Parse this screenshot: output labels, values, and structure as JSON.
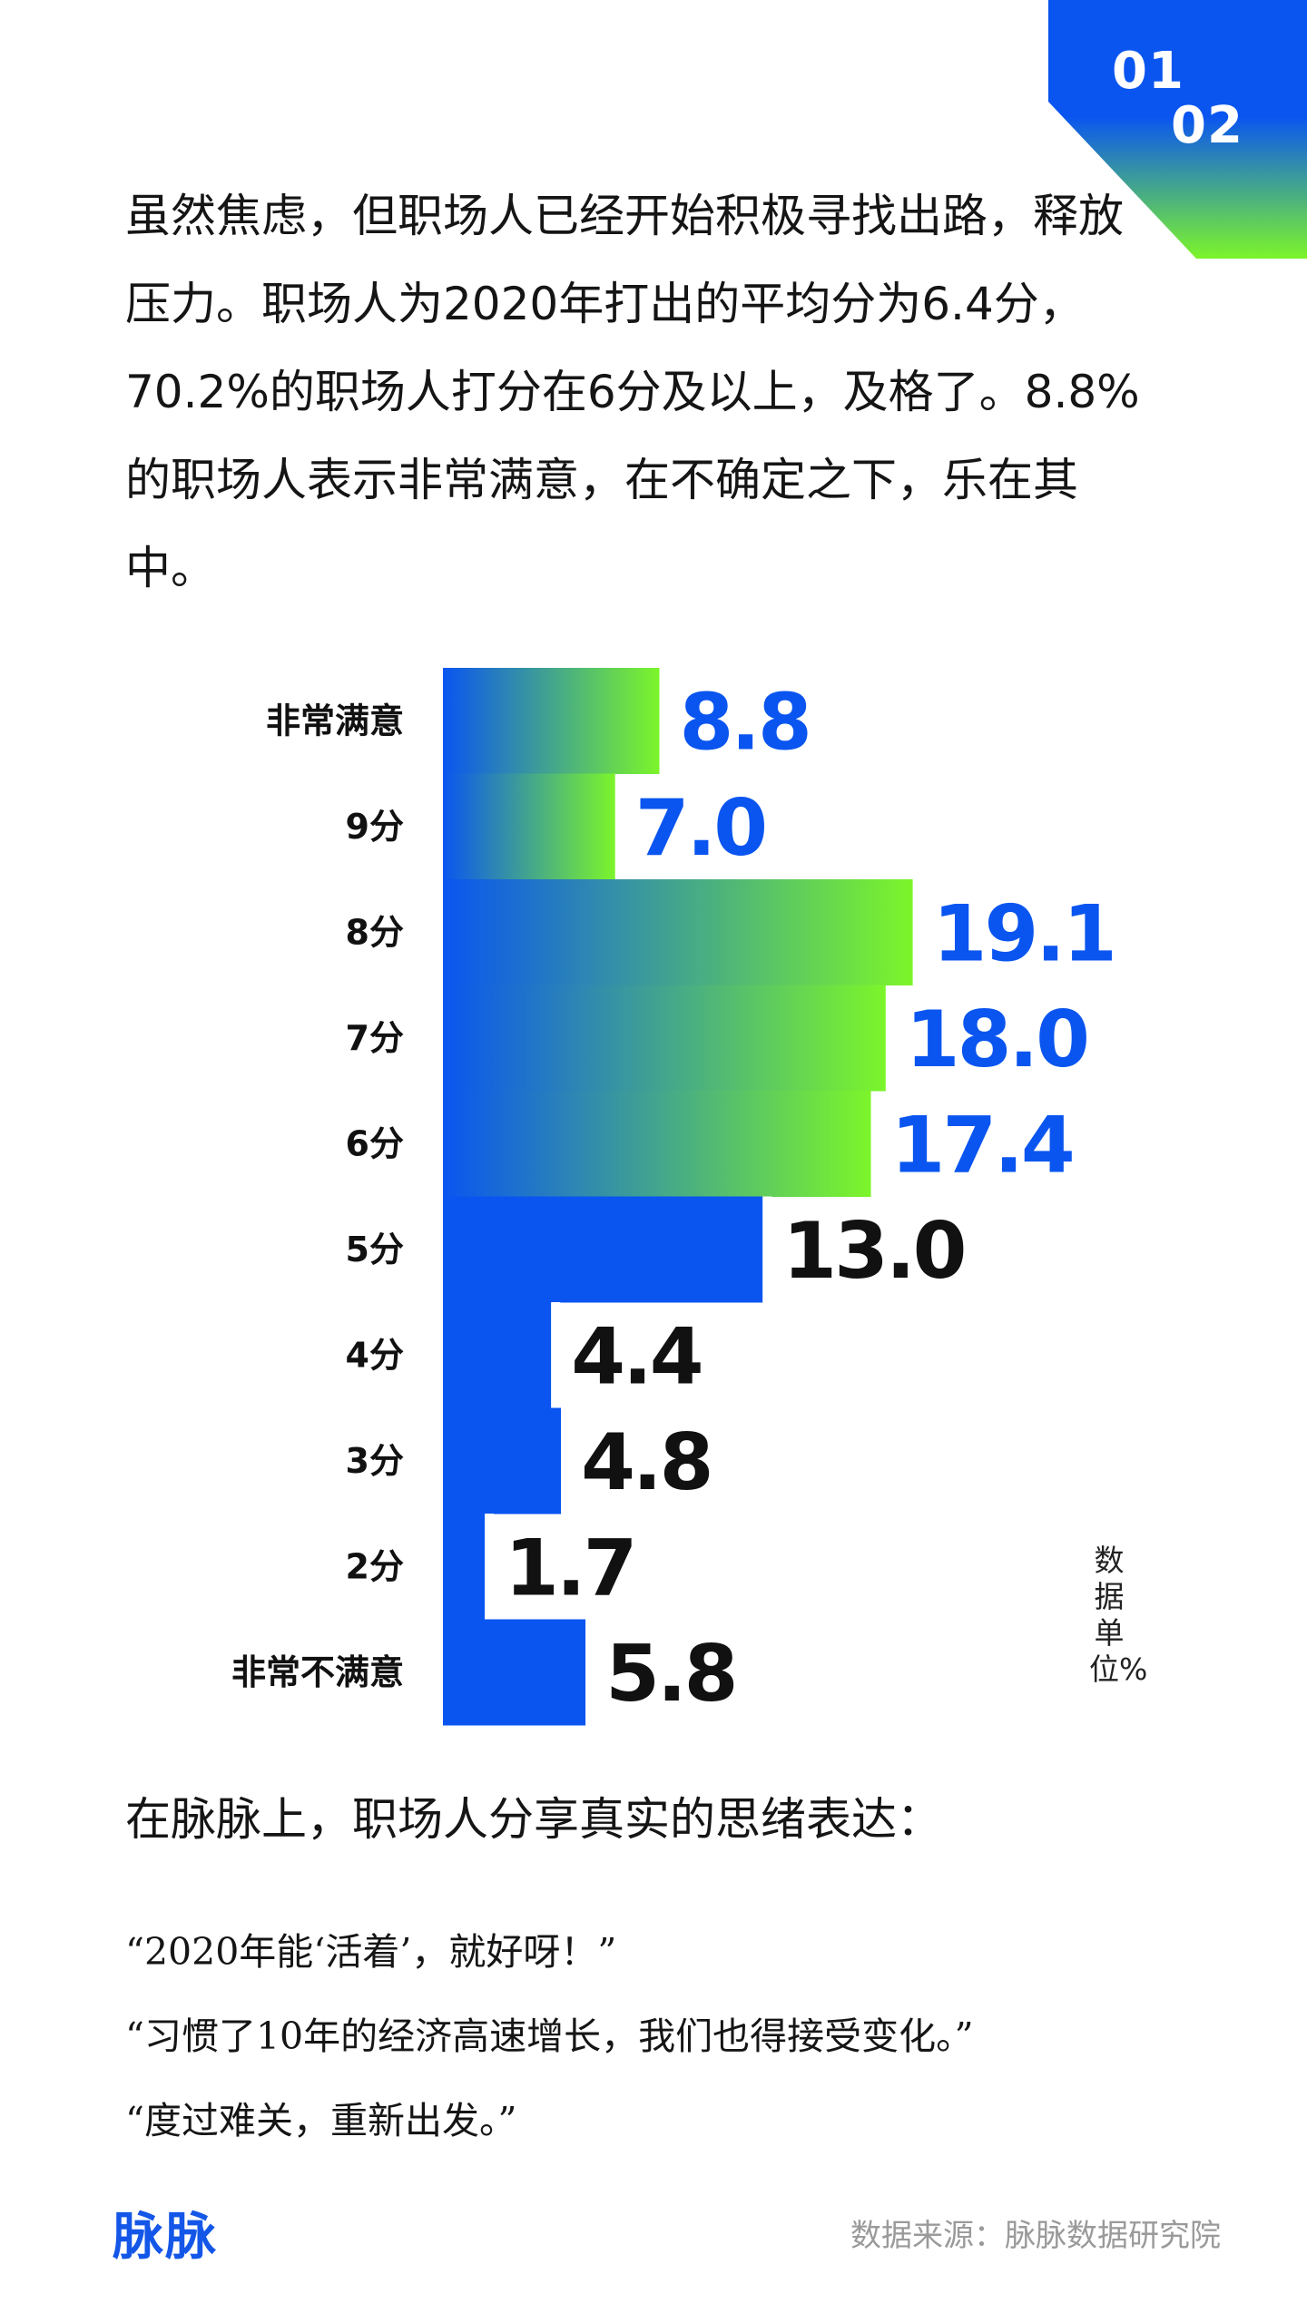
{
  "page": {
    "numbers": [
      "01",
      "02"
    ],
    "colors": {
      "blue": "#0a55f0",
      "green": "#7cf52a",
      "black": "#111111"
    }
  },
  "intro": {
    "text": "虽然焦虑，但职场人已经开始积极寻找出路，释放压力。职场人为2020年打出的平均分为6.4分，70.2%的职场人打分在6分及以上，及格了。8.8%的职场人表示非常满意，在不确定之下，乐在其中。"
  },
  "chart_data": {
    "type": "bar",
    "orientation": "horizontal",
    "categories": [
      "非常满意",
      "9分",
      "8分",
      "7分",
      "6分",
      "5分",
      "4分",
      "3分",
      "2分",
      "非常不满意"
    ],
    "values": [
      8.8,
      7.0,
      19.1,
      18.0,
      17.4,
      13.0,
      4.4,
      4.8,
      1.7,
      5.8
    ],
    "value_labels": [
      "8.8",
      "7.0",
      "19.1",
      "18.0",
      "17.4",
      "13.0",
      "4.4",
      "4.8",
      "1.7",
      "5.8"
    ],
    "highlighted_gradient_categories": [
      "非常满意",
      "9分",
      "8分",
      "7分",
      "6分"
    ],
    "unit_note": "数据单位%",
    "grid": false,
    "legend": "none"
  },
  "share": {
    "title": "在脉脉上，职场人分享真实的思绪表达：",
    "quotes": [
      "“2020年能‘活着’，就好呀！”",
      "“习惯了10年的经济高速增长，我们也得接受变化。”",
      "“度过难关，重新出发。”"
    ]
  },
  "footer": {
    "brand": "脉脉",
    "source": "数据来源：脉脉数据研究院"
  }
}
